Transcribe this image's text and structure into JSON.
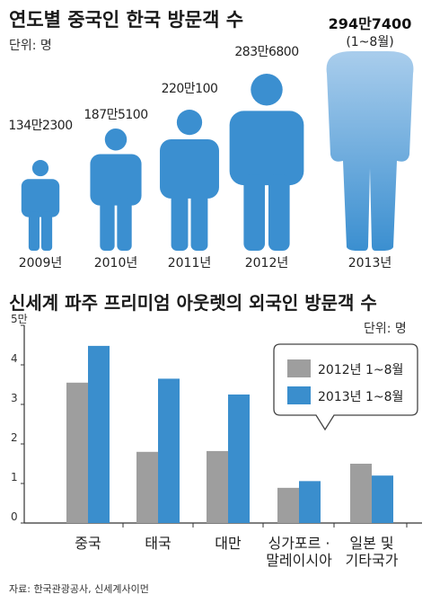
{
  "visitors_chart": {
    "title": "연도별 중국인 한국 방문객 수",
    "unit": "단위: 명",
    "figures": [
      {
        "year": "2009년",
        "label": "134만2300",
        "value": 1342300
      },
      {
        "year": "2010년",
        "label": "187만5100",
        "value": 1875100
      },
      {
        "year": "2011년",
        "label": "220만100",
        "value": 2200100
      },
      {
        "year": "2012년",
        "label": "283만6800",
        "value": 2836800
      },
      {
        "year": "2013년",
        "label": "294만7400",
        "note": "(1~8월)",
        "value": 2947400
      }
    ],
    "colors": {
      "figure": "#3b8fd0",
      "figure_faded": "#a9cdec"
    }
  },
  "chart_data": {
    "type": "bar",
    "title": "신세계 파주 프리미엄 아웃렛의 외국인 방문객 수",
    "unit": "단위: 명",
    "categories": [
      [
        "중국"
      ],
      [
        "태국"
      ],
      [
        "대만"
      ],
      [
        "싱가포르 ·",
        "말레이시아"
      ],
      [
        "일본 및",
        "기타국가"
      ]
    ],
    "series": [
      {
        "name": "2012년 1~8월",
        "color": "#9e9e9e",
        "values": [
          35500,
          18000,
          18200,
          8900,
          15000
        ]
      },
      {
        "name": "2013년 1~8월",
        "color": "#3a8ecd",
        "values": [
          44800,
          36500,
          32500,
          10600,
          12000
        ]
      }
    ],
    "ylim": [
      0,
      50000
    ],
    "yticks": [
      "0",
      "1",
      "2",
      "3",
      "4",
      "5만"
    ],
    "legend": "top-right",
    "grid": false
  },
  "source": "자료: 한국관광공사, 신세계사이먼"
}
